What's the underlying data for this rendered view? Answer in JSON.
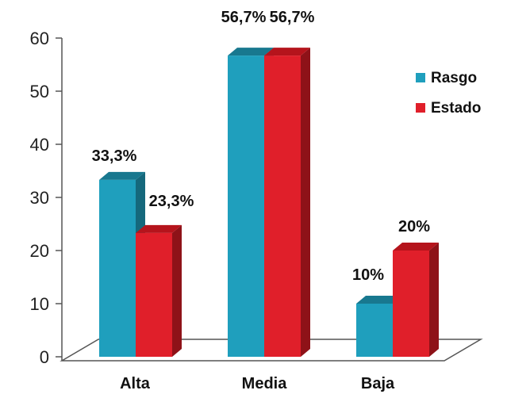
{
  "chart_data": {
    "type": "bar",
    "title": "",
    "xlabel": "",
    "ylabel": "",
    "ylim": [
      0,
      60
    ],
    "yticks": [
      "0",
      "10",
      "20",
      "30",
      "40",
      "50",
      "60"
    ],
    "categories": [
      "Alta",
      "Media",
      "Baja"
    ],
    "series": [
      {
        "name": "Rasgo",
        "values": [
          33.3,
          56.7,
          10
        ],
        "labels": [
          "33,3%",
          "56,7%",
          "10%"
        ],
        "color_front": "#1f9fbd",
        "color_side": "#15687c",
        "color_top": "#18788f"
      },
      {
        "name": "Estado",
        "values": [
          23.3,
          56.7,
          20
        ],
        "labels": [
          "23,3%",
          "56,7%",
          "20%"
        ],
        "color_front": "#e01f2a",
        "color_side": "#8e1218",
        "color_top": "#b5141c"
      }
    ],
    "legend_position": "right",
    "grid": false,
    "style": "3d-bar"
  }
}
